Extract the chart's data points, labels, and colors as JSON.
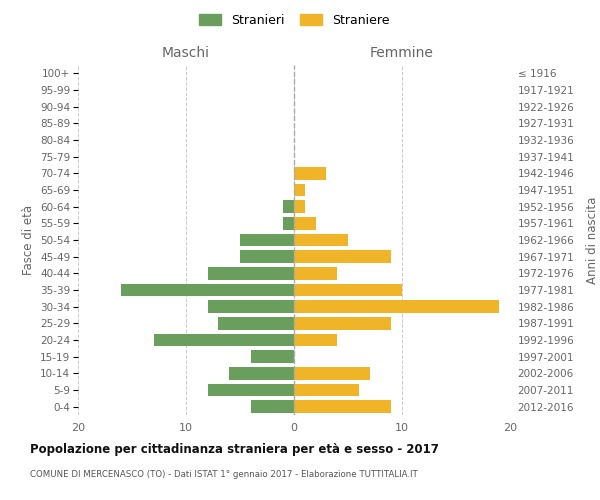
{
  "age_groups": [
    "0-4",
    "5-9",
    "10-14",
    "15-19",
    "20-24",
    "25-29",
    "30-34",
    "35-39",
    "40-44",
    "45-49",
    "50-54",
    "55-59",
    "60-64",
    "65-69",
    "70-74",
    "75-79",
    "80-84",
    "85-89",
    "90-94",
    "95-99",
    "100+"
  ],
  "birth_years": [
    "2012-2016",
    "2007-2011",
    "2002-2006",
    "1997-2001",
    "1992-1996",
    "1987-1991",
    "1982-1986",
    "1977-1981",
    "1972-1976",
    "1967-1971",
    "1962-1966",
    "1957-1961",
    "1952-1956",
    "1947-1951",
    "1942-1946",
    "1937-1941",
    "1932-1936",
    "1927-1931",
    "1922-1926",
    "1917-1921",
    "≤ 1916"
  ],
  "maschi": [
    4,
    8,
    6,
    4,
    13,
    7,
    8,
    16,
    8,
    5,
    5,
    1,
    1,
    0,
    0,
    0,
    0,
    0,
    0,
    0,
    0
  ],
  "femmine": [
    9,
    6,
    7,
    0,
    4,
    9,
    19,
    10,
    4,
    9,
    5,
    2,
    1,
    1,
    3,
    0,
    0,
    0,
    0,
    0,
    0
  ],
  "maschi_color": "#6a9e5c",
  "femmine_color": "#f0b429",
  "title": "Popolazione per cittadinanza straniera per età e sesso - 2017",
  "subtitle": "COMUNE DI MERCENASCO (TO) - Dati ISTAT 1° gennaio 2017 - Elaborazione TUTTITALIA.IT",
  "xlabel_left": "Maschi",
  "xlabel_right": "Femmine",
  "ylabel_left": "Fasce di età",
  "ylabel_right": "Anni di nascita",
  "legend_maschi": "Stranieri",
  "legend_femmine": "Straniere",
  "xlim": 20,
  "background_color": "#ffffff",
  "grid_color": "#cccccc"
}
